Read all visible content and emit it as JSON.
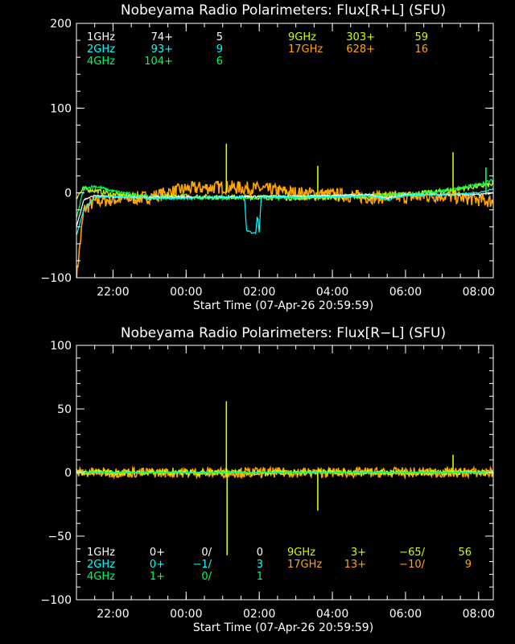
{
  "colors": {
    "background": "#000000",
    "axis": "#ffffff",
    "1GHz": "#ffffff",
    "2GHz": "#00ffff",
    "4GHz": "#00ff5a",
    "9GHz": "#c8ff00",
    "17GHz": "#ffa500"
  },
  "chart_data": [
    {
      "type": "line",
      "title": "Nobeyama Radio Polarimeters: Flux[R+L] (SFU)",
      "xlabel": "Start Time (07-Apr-26 20:59:59)",
      "ylabel": "",
      "ylim": [
        -100,
        200
      ],
      "yticks": [
        "200",
        "100",
        "0",
        "−100"
      ],
      "xticks": [
        "22:00",
        "00:00",
        "02:00",
        "04:00",
        "06:00",
        "08:00"
      ],
      "legend_rows": [
        {
          "band": "1GHz",
          "cols": [
            "74+",
            "5"
          ],
          "color_key": "1GHz"
        },
        {
          "band": "2GHz",
          "cols": [
            "93+",
            "9"
          ],
          "color_key": "2GHz"
        },
        {
          "band": "4GHz",
          "cols": [
            "104+",
            "6"
          ],
          "color_key": "4GHz"
        },
        {
          "band": "9GHz",
          "cols": [
            "303+",
            "59"
          ],
          "color_key": "9GHz"
        },
        {
          "band": "17GHz",
          "cols": [
            "628+",
            "16"
          ],
          "color_key": "17GHz"
        }
      ],
      "series": [
        {
          "name": "17GHz",
          "x": [
            21.0,
            21.2,
            21.5,
            22.0,
            23.0,
            0.0,
            1.0,
            2.0,
            3.0,
            4.0,
            5.0,
            6.0,
            7.0,
            8.0,
            8.4
          ],
          "y": [
            -100,
            -20,
            -10,
            -8,
            -5,
            5,
            7,
            5,
            0,
            -2,
            -5,
            -5,
            -3,
            -8,
            -10
          ],
          "noise": 8
        },
        {
          "name": "9GHz",
          "x": [
            21.0,
            21.2,
            21.5,
            22.0,
            23.0,
            0.0,
            1.0,
            2.0,
            3.0,
            4.0,
            5.0,
            6.0,
            7.0,
            8.0,
            8.4
          ],
          "y": [
            -5,
            5,
            3,
            -2,
            -5,
            -4,
            -5,
            -5,
            -6,
            -5,
            -4,
            -2,
            2,
            8,
            10
          ],
          "noise": 3
        },
        {
          "name": "4GHz",
          "x": [
            21.0,
            21.2,
            21.5,
            22.0,
            23.0,
            0.0,
            1.0,
            2.0,
            3.0,
            4.0,
            5.0,
            6.0,
            7.0,
            8.0,
            8.4
          ],
          "y": [
            -30,
            5,
            8,
            2,
            -5,
            -6,
            -6,
            -5,
            -5,
            -4,
            -3,
            -2,
            2,
            10,
            15
          ],
          "noise": 2
        },
        {
          "name": "1GHz",
          "x": [
            21.0,
            21.2,
            21.5,
            22.0,
            23.0,
            0.0,
            1.0,
            2.0,
            3.0,
            4.0,
            5.0,
            5.5,
            6.0,
            7.0,
            8.0,
            8.4
          ],
          "y": [
            -40,
            -8,
            -3,
            -5,
            -5,
            -5,
            -5,
            -4,
            -4,
            -3,
            -2,
            -6,
            -2,
            -2,
            -2,
            0
          ],
          "noise": 1
        },
        {
          "name": "2GHz",
          "x": [
            21.0,
            21.2,
            21.5,
            22.0,
            23.0,
            0.0,
            1.0,
            1.6,
            1.65,
            1.9,
            1.95,
            2.0,
            2.05,
            3.0,
            4.0,
            5.0,
            5.5,
            6.0,
            7.0,
            8.0,
            8.4
          ],
          "y": [
            -50,
            -20,
            -5,
            -4,
            -6,
            -6,
            -5,
            -5,
            -45,
            -48,
            -25,
            -48,
            -5,
            -5,
            -5,
            -3,
            -8,
            -3,
            -2,
            0,
            5
          ],
          "noise": 1
        }
      ],
      "spikes": [
        {
          "series": "9GHz",
          "x": 1.1,
          "y": 58
        },
        {
          "series": "9GHz",
          "x": 7.3,
          "y": 48
        },
        {
          "series": "9GHz",
          "x": 3.6,
          "y": 32
        },
        {
          "series": "4GHz",
          "x": 8.2,
          "y": 30
        }
      ]
    },
    {
      "type": "line",
      "title": "Nobeyama Radio Polarimeters: Flux[R−L] (SFU)",
      "xlabel": "Start Time (07-Apr-26 20:59:59)",
      "ylabel": "",
      "ylim": [
        -100,
        100
      ],
      "yticks": [
        "100",
        "50",
        "0",
        "−50",
        "−100"
      ],
      "xticks": [
        "22:00",
        "00:00",
        "02:00",
        "04:00",
        "06:00",
        "08:00"
      ],
      "legend_rows": [
        {
          "band": "1GHz",
          "cols": [
            "0+",
            "0/",
            "0"
          ],
          "color_key": "1GHz"
        },
        {
          "band": "2GHz",
          "cols": [
            "0+",
            "−1/",
            "3"
          ],
          "color_key": "2GHz"
        },
        {
          "band": "4GHz",
          "cols": [
            "1+",
            "0/",
            "1"
          ],
          "color_key": "4GHz"
        },
        {
          "band": "9GHz",
          "cols": [
            "3+",
            "−65/",
            "56"
          ],
          "color_key": "9GHz"
        },
        {
          "band": "17GHz",
          "cols": [
            "13+",
            "−10/",
            "9"
          ],
          "color_key": "17GHz"
        }
      ],
      "series": [
        {
          "name": "17GHz",
          "x": [
            21.0,
            8.4
          ],
          "y": [
            0,
            0
          ],
          "noise": 4
        },
        {
          "name": "9GHz",
          "x": [
            21.0,
            8.4
          ],
          "y": [
            0,
            0
          ],
          "noise": 2
        },
        {
          "name": "2GHz",
          "x": [
            21.0,
            8.4
          ],
          "y": [
            0,
            0
          ],
          "noise": 0.5
        },
        {
          "name": "4GHz",
          "x": [
            21.0,
            8.4
          ],
          "y": [
            0,
            0
          ],
          "noise": 0.5
        }
      ],
      "spikes": [
        {
          "series": "9GHz",
          "x": 1.1,
          "y": 56
        },
        {
          "series": "9GHz",
          "x": 1.12,
          "y": -65
        },
        {
          "series": "9GHz",
          "x": 3.6,
          "y": -30
        },
        {
          "series": "9GHz",
          "x": 7.3,
          "y": 14
        }
      ]
    }
  ]
}
